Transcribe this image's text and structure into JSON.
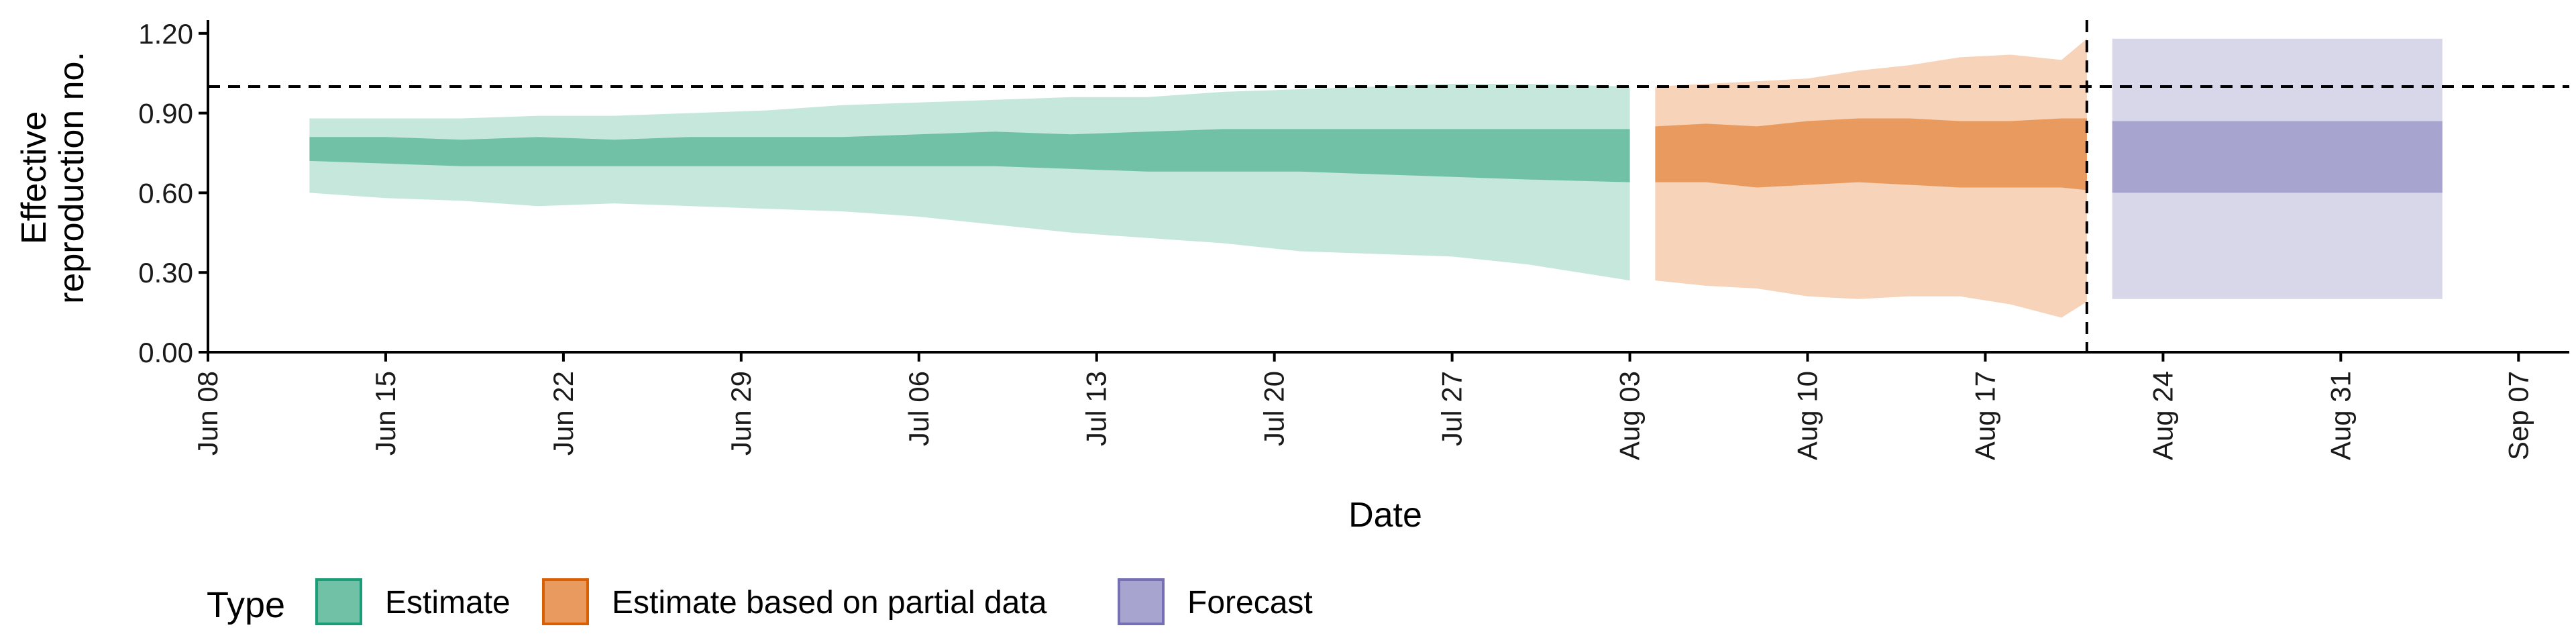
{
  "chart_data": {
    "type": "area",
    "xlabel": "Date",
    "ylabel": [
      "Effective",
      "reproduction no."
    ],
    "xlim": [
      "2020-06-08",
      "2020-09-09"
    ],
    "ylim": [
      0,
      1.25
    ],
    "y_ticks": [
      {
        "value": 0.0,
        "label": "0.00"
      },
      {
        "value": 0.3,
        "label": "0.30"
      },
      {
        "value": 0.6,
        "label": "0.60"
      },
      {
        "value": 0.9,
        "label": "0.90"
      },
      {
        "value": 1.2,
        "label": "1.20"
      }
    ],
    "x_ticks": [
      {
        "date": "2020-06-08",
        "label": "Jun 08"
      },
      {
        "date": "2020-06-15",
        "label": "Jun 15"
      },
      {
        "date": "2020-06-22",
        "label": "Jun 22"
      },
      {
        "date": "2020-06-29",
        "label": "Jun 29"
      },
      {
        "date": "2020-07-06",
        "label": "Jul 06"
      },
      {
        "date": "2020-07-13",
        "label": "Jul 13"
      },
      {
        "date": "2020-07-20",
        "label": "Jul 20"
      },
      {
        "date": "2020-07-27",
        "label": "Jul 27"
      },
      {
        "date": "2020-08-03",
        "label": "Aug 03"
      },
      {
        "date": "2020-08-10",
        "label": "Aug 10"
      },
      {
        "date": "2020-08-17",
        "label": "Aug 17"
      },
      {
        "date": "2020-08-24",
        "label": "Aug 24"
      },
      {
        "date": "2020-08-31",
        "label": "Aug 31"
      },
      {
        "date": "2020-09-07",
        "label": "Sep 07"
      }
    ],
    "reference_line_y": 1.0,
    "vertical_line_x": "2020-08-21",
    "grid": false,
    "legend": {
      "title": "Type",
      "placement": "bottom",
      "entries": [
        {
          "label": "Estimate",
          "fill": "#71c1a6",
          "border": "#1b9e77"
        },
        {
          "label": "Estimate based on partial data",
          "fill": "#e99a5e",
          "border": "#d95f02"
        },
        {
          "label": "Forecast",
          "fill": "#a7a4d0",
          "border": "#7570b3"
        }
      ]
    },
    "series": [
      {
        "name": "Estimate",
        "outer_color": "#c5e7dc",
        "inner_color": "#71c1a6",
        "x": [
          "2020-06-12",
          "2020-06-15",
          "2020-06-18",
          "2020-06-21",
          "2020-06-24",
          "2020-06-27",
          "2020-06-30",
          "2020-07-03",
          "2020-07-06",
          "2020-07-09",
          "2020-07-12",
          "2020-07-15",
          "2020-07-18",
          "2020-07-21",
          "2020-07-24",
          "2020-07-27",
          "2020-07-30",
          "2020-08-03"
        ],
        "lower_90": [
          0.6,
          0.58,
          0.57,
          0.55,
          0.56,
          0.55,
          0.54,
          0.53,
          0.51,
          0.48,
          0.45,
          0.43,
          0.41,
          0.38,
          0.37,
          0.36,
          0.33,
          0.27
        ],
        "lower_50": [
          0.72,
          0.71,
          0.7,
          0.7,
          0.7,
          0.7,
          0.7,
          0.7,
          0.7,
          0.7,
          0.69,
          0.68,
          0.68,
          0.68,
          0.67,
          0.66,
          0.65,
          0.64
        ],
        "upper_50": [
          0.81,
          0.81,
          0.8,
          0.81,
          0.8,
          0.81,
          0.81,
          0.81,
          0.82,
          0.83,
          0.82,
          0.83,
          0.84,
          0.84,
          0.84,
          0.84,
          0.84,
          0.84
        ],
        "upper_90": [
          0.88,
          0.88,
          0.88,
          0.89,
          0.89,
          0.9,
          0.91,
          0.93,
          0.94,
          0.95,
          0.96,
          0.96,
          0.98,
          0.99,
          1.0,
          1.01,
          1.01,
          1.0
        ]
      },
      {
        "name": "Estimate based on partial data",
        "outer_color": "#f6d3b9",
        "inner_color": "#e99a5e",
        "x": [
          "2020-08-04",
          "2020-08-06",
          "2020-08-08",
          "2020-08-10",
          "2020-08-12",
          "2020-08-14",
          "2020-08-16",
          "2020-08-18",
          "2020-08-20",
          "2020-08-21"
        ],
        "lower_90": [
          0.27,
          0.25,
          0.24,
          0.21,
          0.2,
          0.21,
          0.21,
          0.18,
          0.13,
          0.19
        ],
        "lower_50": [
          0.64,
          0.64,
          0.62,
          0.63,
          0.64,
          0.63,
          0.62,
          0.62,
          0.62,
          0.61
        ],
        "upper_50": [
          0.85,
          0.86,
          0.85,
          0.87,
          0.88,
          0.88,
          0.87,
          0.87,
          0.88,
          0.88
        ],
        "upper_90": [
          1.0,
          1.01,
          1.02,
          1.03,
          1.06,
          1.08,
          1.11,
          1.12,
          1.1,
          1.18
        ]
      },
      {
        "name": "Forecast",
        "outer_color": "#d8d7ea",
        "inner_color": "#a7a4d0",
        "x": [
          "2020-08-22",
          "2020-09-04"
        ],
        "lower_90": [
          0.2,
          0.2
        ],
        "lower_50": [
          0.6,
          0.6
        ],
        "upper_50": [
          0.87,
          0.87
        ],
        "upper_90": [
          1.18,
          1.18
        ]
      }
    ]
  }
}
